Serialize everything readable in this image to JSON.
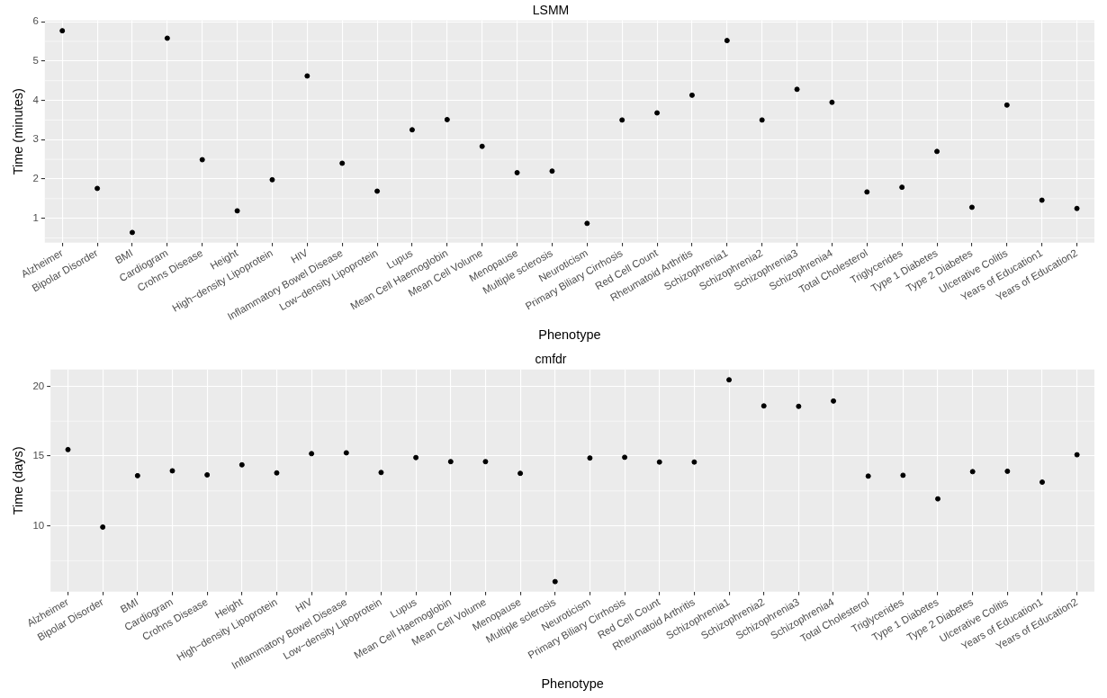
{
  "chart_data": [
    {
      "type": "scatter",
      "title": "LSMM",
      "xlabel": "Phenotype",
      "ylabel": "Time (minutes)",
      "categories": [
        "Alzheimer",
        "Bipolar Disorder",
        "BMI",
        "Cardiogram",
        "Crohns Disease",
        "Height",
        "High−density Lipoprotein",
        "HIV",
        "Inflammatory Bowel Disease",
        "Low−density Lipoprotein",
        "Lupus",
        "Mean Cell Haemoglobin",
        "Mean Cell Volume",
        "Menopause",
        "Multiple sclerosis",
        "Neuroticism",
        "Primary Biliary Cirrhosis",
        "Red Cell Count",
        "Rheumatoid Arthritis",
        "Schizophrenia1",
        "Schizophrenia2",
        "Schizophrenia3",
        "Schizophrenia4",
        "Total Cholesterol",
        "Triglycerides",
        "Type 1 Diabetes",
        "Type 2 Diabetes",
        "Ulcerative Colitis",
        "Years of Education1",
        "Years of Education2"
      ],
      "values": [
        5.77,
        1.76,
        0.64,
        5.58,
        2.49,
        1.19,
        1.98,
        4.62,
        2.4,
        1.69,
        3.25,
        3.51,
        2.83,
        2.16,
        2.2,
        0.87,
        3.5,
        3.68,
        4.13,
        5.52,
        3.5,
        4.28,
        3.95,
        1.67,
        1.79,
        2.7,
        1.28,
        3.88,
        1.46,
        1.25
      ],
      "color": "#000000",
      "marker": "circle",
      "grid": true,
      "ylim": [
        0.38,
        6.03
      ],
      "yticks": [
        1,
        2,
        3,
        4,
        5,
        6
      ]
    },
    {
      "type": "scatter",
      "title": "cmfdr",
      "xlabel": "Phenotype",
      "ylabel": "Time (days)",
      "categories": [
        "Alzheimer",
        "Bipolar Disorder",
        "BMI",
        "Cardiogram",
        "Crohns Disease",
        "Height",
        "High−density Lipoprotein",
        "HIV",
        "Inflammatory Bowel Disease",
        "Low−density Lipoprotein",
        "Lupus",
        "Mean Cell Haemoglobin",
        "Mean Cell Volume",
        "Menopause",
        "Multiple sclerosis",
        "Neuroticism",
        "Primary Biliary Cirrhosis",
        "Red Cell Count",
        "Rheumatoid Arthritis",
        "Schizophrenia1",
        "Schizophrenia2",
        "Schizophrenia3",
        "Schizophrenia4",
        "Total Cholesterol",
        "Triglycerides",
        "Type 1 Diabetes",
        "Type 2 Diabetes",
        "Ulcerative Colitis",
        "Years of Education1",
        "Years of Education2"
      ],
      "values": [
        15.46,
        9.91,
        13.59,
        13.94,
        13.65,
        14.37,
        13.79,
        15.17,
        15.23,
        13.82,
        14.89,
        14.6,
        14.6,
        13.76,
        6.0,
        14.86,
        14.91,
        14.57,
        14.57,
        20.46,
        18.59,
        18.56,
        18.94,
        13.56,
        13.62,
        11.93,
        13.88,
        13.91,
        13.13,
        15.09
      ],
      "color": "#000000",
      "marker": "circle",
      "grid": true,
      "ylim": [
        5.28,
        21.2
      ],
      "yticks": [
        10,
        15,
        20
      ]
    }
  ]
}
